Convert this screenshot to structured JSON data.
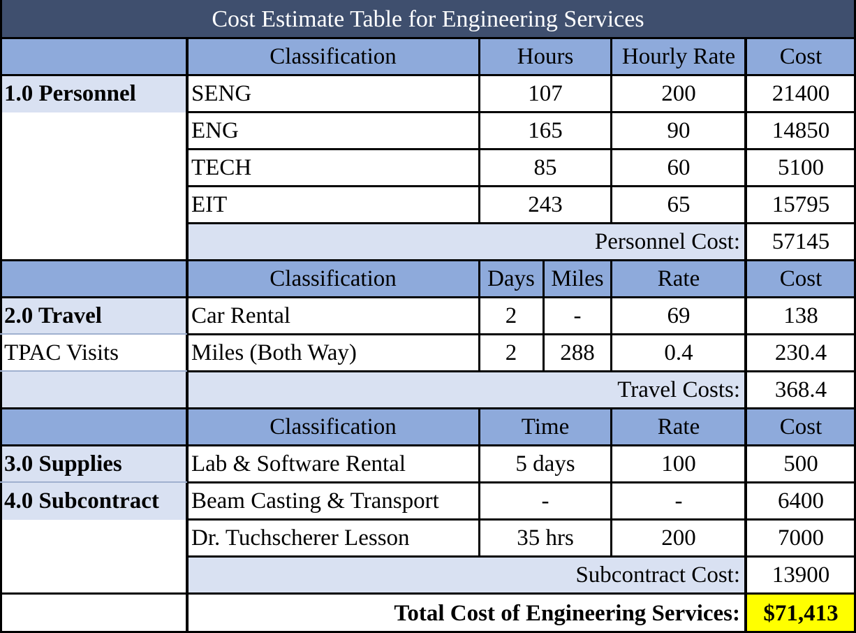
{
  "title": "Cost Estimate Table for Engineering Services",
  "personnel": {
    "section_label": "1.0 Personnel",
    "headers": [
      "Classification",
      "Hours",
      "Hourly Rate",
      "Cost"
    ],
    "rows": [
      {
        "classification": "SENG",
        "hours": "107",
        "rate": "200",
        "cost": "21400"
      },
      {
        "classification": "ENG",
        "hours": "165",
        "rate": "90",
        "cost": "14850"
      },
      {
        "classification": "TECH",
        "hours": "85",
        "rate": "60",
        "cost": "5100"
      },
      {
        "classification": "EIT",
        "hours": "243",
        "rate": "65",
        "cost": "15795"
      }
    ],
    "subtotal_label": "Personnel Cost:",
    "subtotal_value": "57145"
  },
  "travel": {
    "section_label": "2.0 Travel",
    "section_sublabel": "TPAC Visits",
    "headers": [
      "Classification",
      "Days",
      "Miles",
      "Rate",
      "Cost"
    ],
    "rows": [
      {
        "classification": "Car Rental",
        "days": "2",
        "miles": "-",
        "rate": "69",
        "cost": "138"
      },
      {
        "classification": "Miles (Both Way)",
        "days": "2",
        "miles": "288",
        "rate": "0.4",
        "cost": "230.4"
      }
    ],
    "subtotal_label": "Travel Costs:",
    "subtotal_value": "368.4"
  },
  "supplies_subcontract": {
    "headers": [
      "Classification",
      "Time",
      "Rate",
      "Cost"
    ],
    "supplies_label": "3.0 Supplies",
    "subcontract_label": "4.0 Subcontract",
    "rows": [
      {
        "classification": "Lab & Software Rental",
        "time": "5 days",
        "rate": "100",
        "cost": "500"
      },
      {
        "classification": "Beam Casting & Transport",
        "time": "-",
        "rate": "-",
        "cost": "6400"
      },
      {
        "classification": "Dr. Tuchscherer Lesson",
        "time": "35 hrs",
        "rate": "200",
        "cost": "7000"
      }
    ],
    "subtotal_label": "Subcontract Cost:",
    "subtotal_value": "13900"
  },
  "total": {
    "label": "Total Cost of Engineering Services:",
    "value": "$71,413"
  }
}
